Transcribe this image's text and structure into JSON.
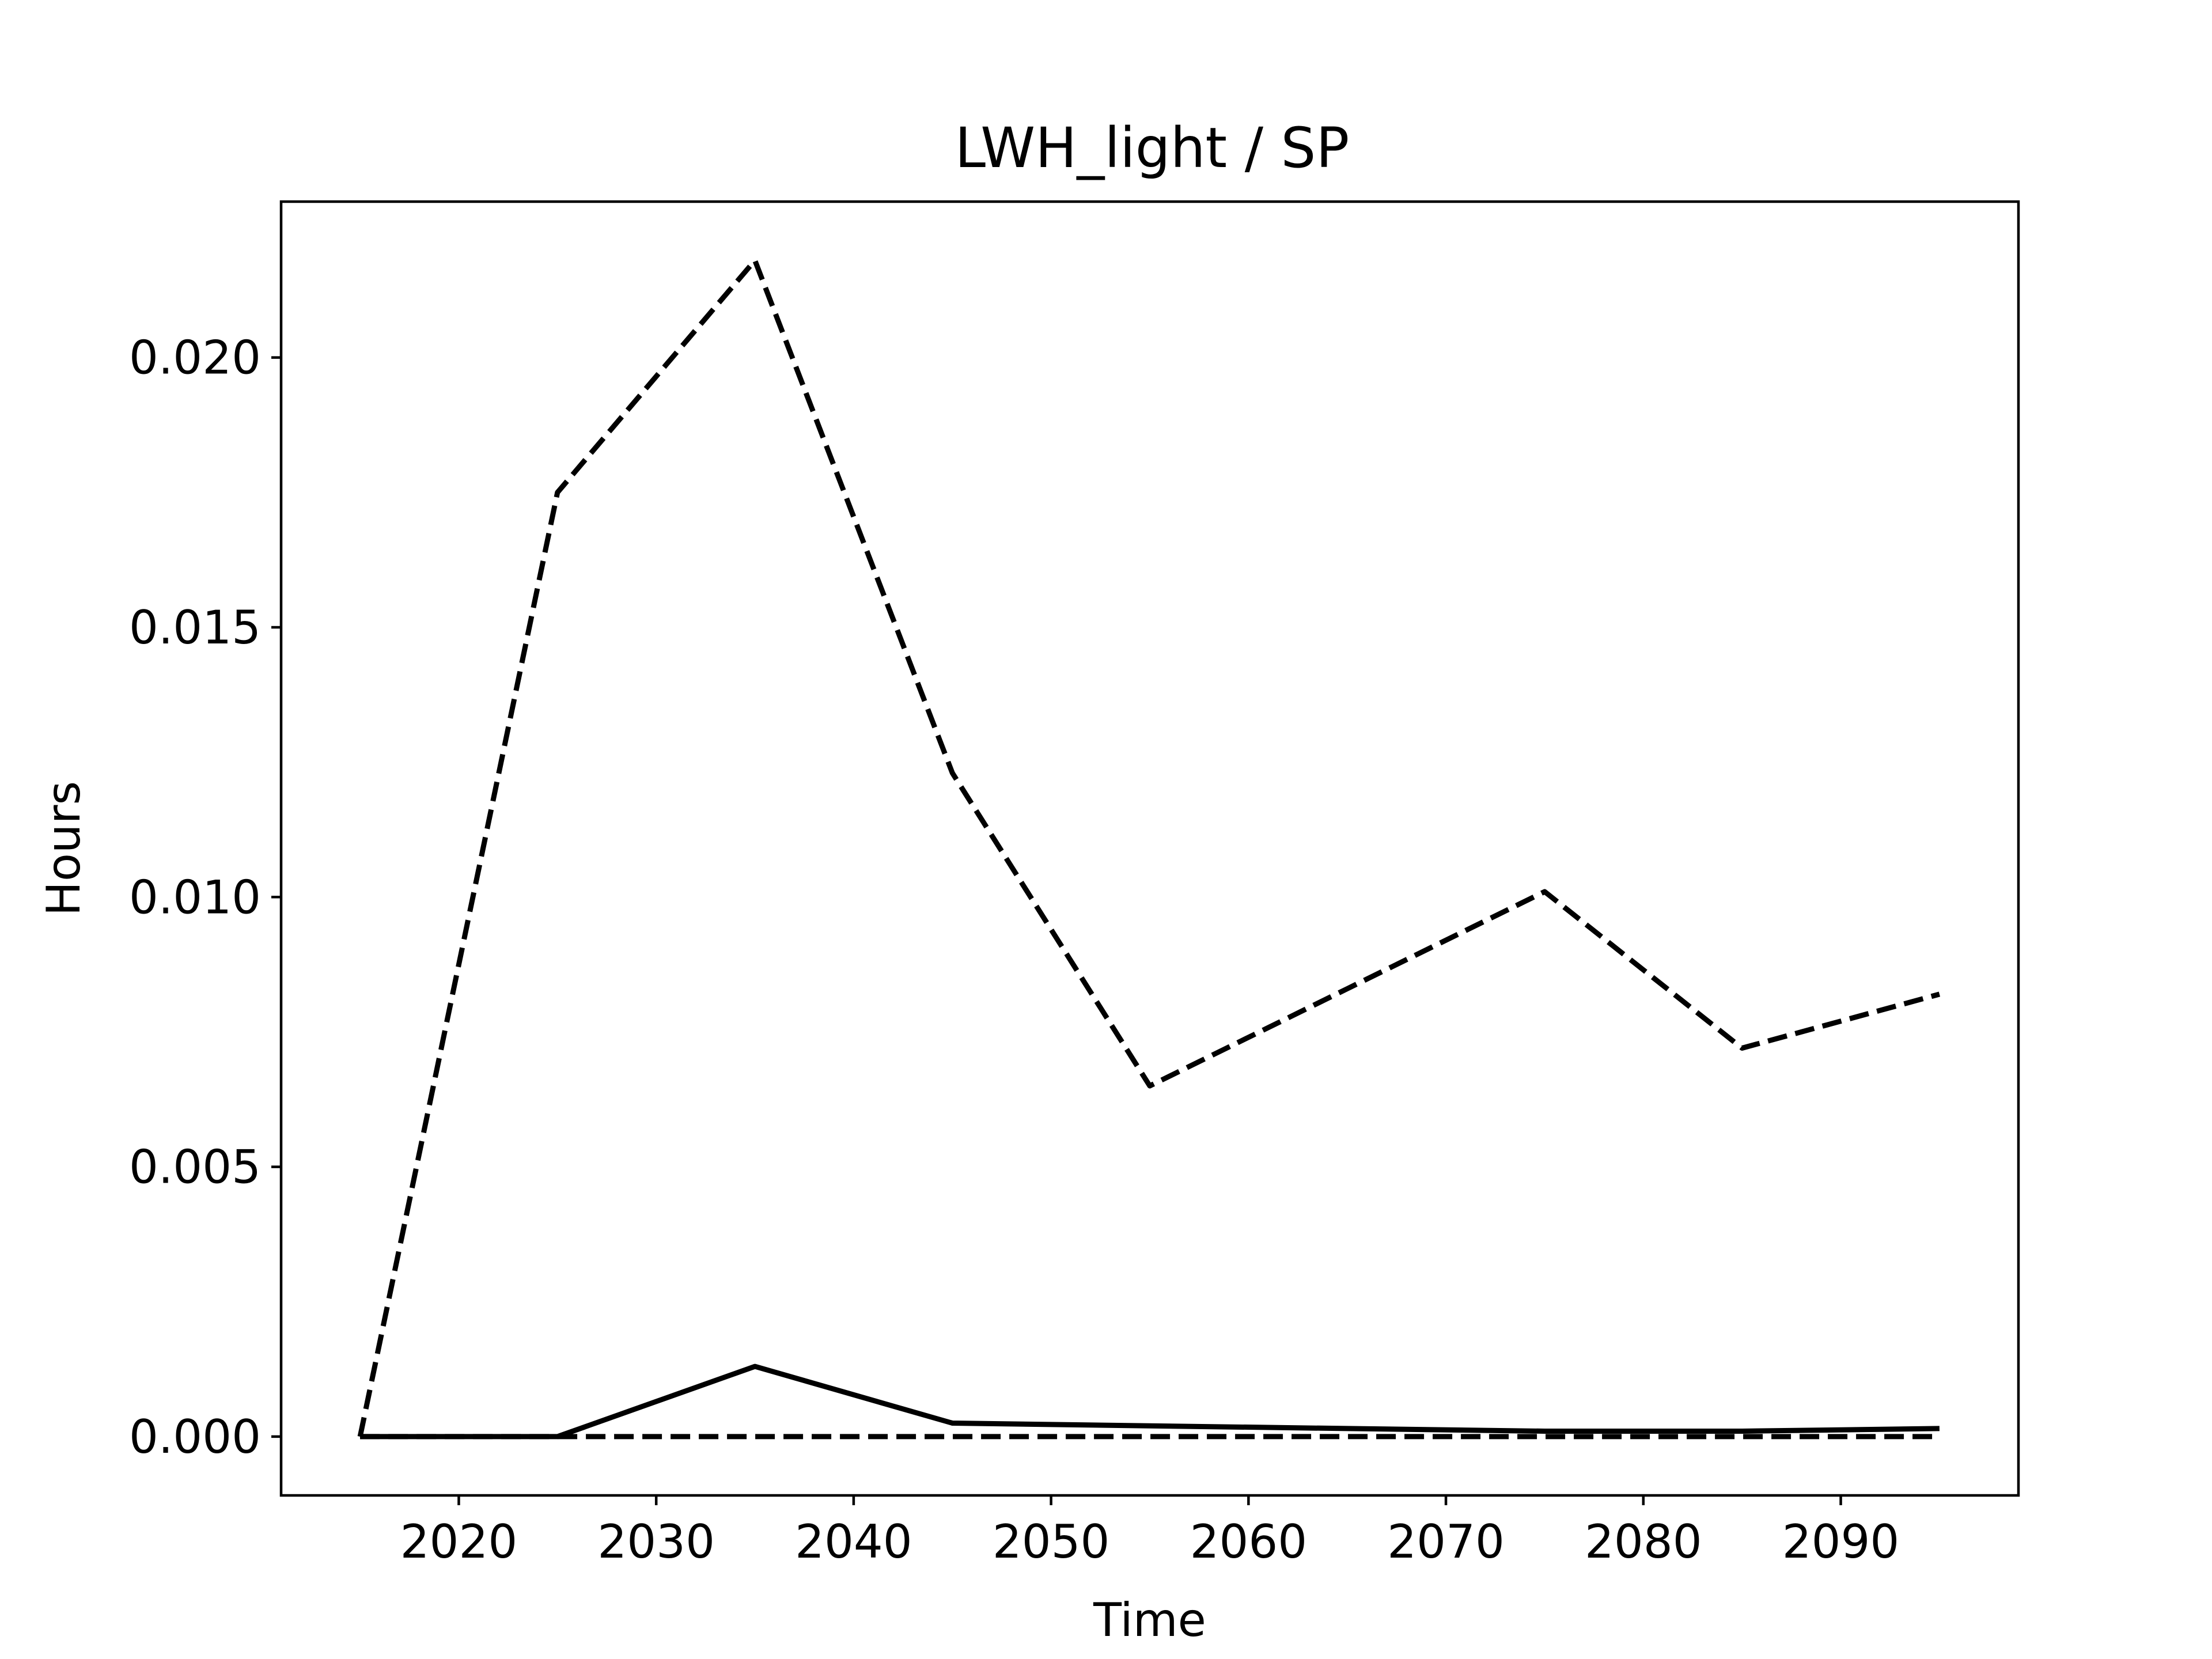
{
  "chart_data": {
    "type": "line",
    "title": "LWH_light / SP",
    "xlabel": "Time",
    "ylabel": "Hours",
    "x": [
      2015,
      2025,
      2035,
      2045,
      2055,
      2065,
      2075,
      2085,
      2095
    ],
    "xlim": [
      2011,
      2099
    ],
    "ylim": [
      -0.00109,
      0.02289
    ],
    "xticks": [
      2020,
      2030,
      2040,
      2050,
      2060,
      2070,
      2080,
      2090
    ],
    "xtick_labels": [
      "2020",
      "2030",
      "2040",
      "2050",
      "2060",
      "2070",
      "2080",
      "2090"
    ],
    "yticks": [
      0.0,
      0.005,
      0.01,
      0.015,
      0.02
    ],
    "ytick_labels": [
      "0.000",
      "0.005",
      "0.010",
      "0.015",
      "0.020"
    ],
    "grid": false,
    "legend": "none",
    "series": [
      {
        "style": "dashed",
        "color": "#000000",
        "values": [
          0.0,
          0.0175,
          0.0218,
          0.0123,
          0.0065,
          0.0083,
          0.0101,
          0.0072,
          0.0082
        ]
      },
      {
        "style": "solid",
        "color": "#000000",
        "values": [
          0.0,
          0.0,
          0.0013,
          0.00025,
          0.0002,
          0.00015,
          0.0001,
          0.0001,
          0.00015
        ]
      },
      {
        "style": "dashed",
        "color": "#000000",
        "values": [
          0.0,
          0.0,
          0.0,
          0.0,
          0.0,
          0.0,
          0.0,
          0.0,
          0.0
        ]
      }
    ]
  }
}
